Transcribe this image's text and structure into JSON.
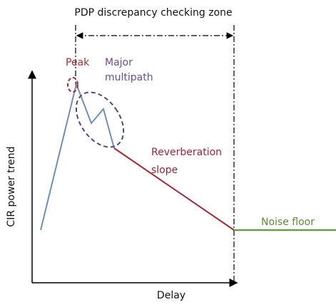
{
  "title": "PDP discrepancy checking zone",
  "labels": {
    "peak": "Peak",
    "major_multipath": [
      "Major",
      "multipath"
    ],
    "reverberation_slope": [
      "Reverberation",
      "slope"
    ],
    "noise_floor": "Noise floor"
  },
  "axes": {
    "y_label": "CIR power trend",
    "x_label": "Delay"
  }
}
